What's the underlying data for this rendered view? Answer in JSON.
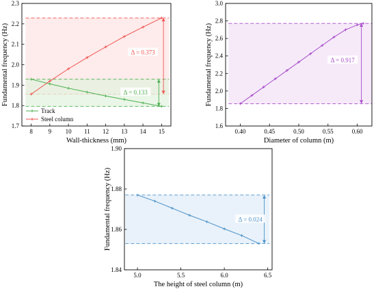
{
  "colors": {
    "track": "#4caf50",
    "steel": "#ef5350",
    "diameter": "#a64ac9",
    "height": "#4a90c8",
    "band_a_fill": "#fde4e4",
    "band_b_fill": "#e3f3df",
    "band_c_fill": "#f3e3f7",
    "band_d_fill": "#e2eef8"
  },
  "chart_data": [
    {
      "id": "a",
      "type": "line",
      "xlabel": "Wall-thickness (mm)",
      "ylabel": "Fundamental frequency (Hz)",
      "xlim": [
        7.5,
        15.5
      ],
      "ylim": [
        1.7,
        2.3
      ],
      "xticks": [
        8,
        9,
        10,
        11,
        12,
        13,
        14,
        15
      ],
      "yticks": [
        1.7,
        1.8,
        1.9,
        2.0,
        2.1,
        2.2,
        2.3
      ],
      "xtick_labels": [
        "8",
        "9",
        "10",
        "11",
        "12",
        "13",
        "14",
        "15"
      ],
      "ytick_labels": [
        "1.7",
        "1.8",
        "1.9",
        "2.0",
        "2.1",
        "2.2",
        "2.3"
      ],
      "legend_position": "bottom-left",
      "series": [
        {
          "name": "Track",
          "color": "#4caf50",
          "x": [
            8,
            9,
            10,
            11,
            12,
            13,
            14,
            15
          ],
          "y": [
            1.929,
            1.906,
            1.885,
            1.866,
            1.847,
            1.83,
            1.813,
            1.796
          ]
        },
        {
          "name": "Steel column",
          "color": "#ef5350",
          "x": [
            8,
            9,
            10,
            11,
            12,
            13,
            14,
            15
          ],
          "y": [
            1.856,
            1.92,
            1.98,
            2.035,
            2.087,
            2.138,
            2.184,
            2.229
          ]
        }
      ],
      "bands": [
        {
          "low": 1.856,
          "high": 2.229,
          "x_from": 7.7,
          "x_to": 15.4,
          "color": "#ef5350",
          "fill": "#fde4e4",
          "label": "Δ = 0.373",
          "arrow_x": 15.1,
          "label_x": 14.0,
          "label_y": 2.06
        },
        {
          "low": 1.796,
          "high": 1.929,
          "x_from": 7.7,
          "x_to": 15.4,
          "color": "#4caf50",
          "fill": "#e3f3df",
          "label": "Δ = 0.133",
          "arrow_x": 14.85,
          "label_x": 13.6,
          "label_y": 1.865
        }
      ]
    },
    {
      "id": "b",
      "type": "line",
      "xlabel": "Diameter of column (m)",
      "ylabel": "Fundamental frequency (Hz)",
      "xlim": [
        0.375,
        0.625
      ],
      "ylim": [
        1.6,
        3.0
      ],
      "xticks": [
        0.4,
        0.45,
        0.5,
        0.55,
        0.6
      ],
      "yticks": [
        1.6,
        1.8,
        2.0,
        2.2,
        2.4,
        2.6,
        2.8,
        3.0
      ],
      "xtick_labels": [
        "0.40",
        "0.45",
        "0.50",
        "0.55",
        "0.60"
      ],
      "ytick_labels": [
        "1.6",
        "1.8",
        "2.0",
        "2.2",
        "2.4",
        "2.6",
        "2.8",
        "3.0"
      ],
      "series": [
        {
          "color": "#a64ac9",
          "x": [
            0.4,
            0.42,
            0.44,
            0.46,
            0.48,
            0.5,
            0.52,
            0.54,
            0.56,
            0.58,
            0.6,
            0.61
          ],
          "y": [
            1.855,
            1.95,
            2.045,
            2.14,
            2.235,
            2.33,
            2.425,
            2.52,
            2.615,
            2.7,
            2.755,
            2.772
          ]
        }
      ],
      "bands": [
        {
          "low": 1.855,
          "high": 2.772,
          "x_from": 0.38,
          "x_to": 0.625,
          "color": "#a64ac9",
          "fill": "#f3e3f7",
          "label": "Δ = 0.917",
          "arrow_x": 0.607,
          "label_x": 0.575,
          "label_y": 2.35
        }
      ]
    },
    {
      "id": "c",
      "type": "line",
      "xlabel": "The height of steel column (m)",
      "ylabel": "Fundamental frequency (Hz)",
      "xlim": [
        4.85,
        6.55
      ],
      "ylim": [
        1.84,
        1.9
      ],
      "xticks": [
        5.0,
        5.5,
        6.0,
        6.5
      ],
      "yticks": [
        1.84,
        1.86,
        1.88,
        1.9
      ],
      "xtick_labels": [
        "5.0",
        "5.5",
        "6.0",
        "6.5"
      ],
      "ytick_labels": [
        "1.84",
        "1.86",
        "1.88",
        "1.90"
      ],
      "series": [
        {
          "color": "#4a90c8",
          "x": [
            5.0,
            5.2,
            5.4,
            5.6,
            5.8,
            6.0,
            6.2,
            6.4
          ],
          "y": [
            1.877,
            1.874,
            1.8705,
            1.867,
            1.8638,
            1.8603,
            1.857,
            1.853
          ]
        }
      ],
      "bands": [
        {
          "low": 1.853,
          "high": 1.877,
          "x_from": 4.86,
          "x_to": 6.52,
          "color": "#4a90c8",
          "fill": "#e2eef8",
          "label": "Δ = 0.024",
          "arrow_x": 6.46,
          "label_x": 6.3,
          "label_y": 1.865
        }
      ]
    }
  ]
}
